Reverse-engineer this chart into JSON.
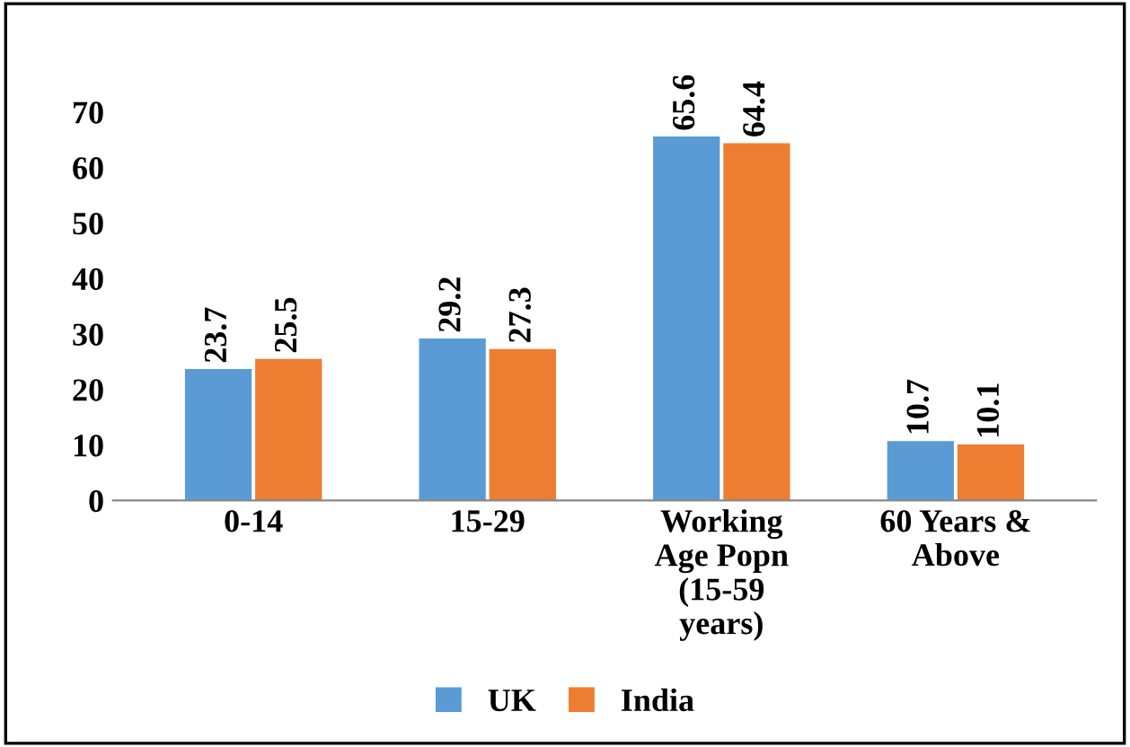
{
  "chart_data": {
    "type": "bar",
    "categories": [
      "0-14",
      "15-29",
      "Working Age Popn (15-59 years)",
      "60 Years & Above"
    ],
    "series": [
      {
        "name": "UK",
        "color": "#5b9bd5",
        "values": [
          23.7,
          29.2,
          65.6,
          10.7
        ]
      },
      {
        "name": "India",
        "color": "#ed7d31",
        "values": [
          25.5,
          27.3,
          64.4,
          10.1
        ]
      }
    ],
    "ylim": [
      0,
      70
    ],
    "yticks": [
      0,
      10,
      20,
      30,
      40,
      50,
      60,
      70
    ],
    "data_labels": true,
    "grid": false,
    "legend": "bottom"
  }
}
